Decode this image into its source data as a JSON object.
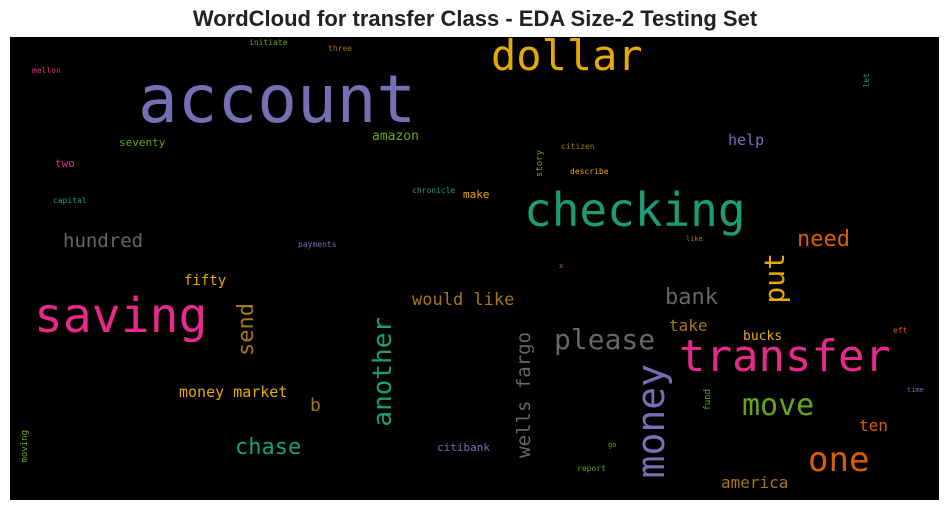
{
  "title": "WordCloud for transfer Class - EDA Size-2 Testing Set",
  "palette": {
    "purple": "#7570b3",
    "gold": "#e6ab02",
    "teal": "#1b9e77",
    "pink": "#e7298a",
    "orange": "#d95f02",
    "gray": "#666666",
    "green": "#66a61e",
    "brown": "#a6761d"
  },
  "words": [
    {
      "text": "account",
      "color": "purple"
    },
    {
      "text": "dollar",
      "color": "gold"
    },
    {
      "text": "checking",
      "color": "teal"
    },
    {
      "text": "saving",
      "color": "pink"
    },
    {
      "text": "transfer",
      "color": "pink"
    },
    {
      "text": "money",
      "color": "purple"
    },
    {
      "text": "move",
      "color": "green"
    },
    {
      "text": "one",
      "color": "orange"
    },
    {
      "text": "please",
      "color": "gray"
    },
    {
      "text": "put",
      "color": "gold"
    },
    {
      "text": "another",
      "color": "teal"
    },
    {
      "text": "send",
      "color": "brown"
    },
    {
      "text": "bank",
      "color": "gray"
    },
    {
      "text": "need",
      "color": "orange"
    },
    {
      "text": "hundred",
      "color": "gray"
    },
    {
      "text": "chase",
      "color": "teal"
    },
    {
      "text": "wells fargo",
      "color": "gray"
    },
    {
      "text": "would like",
      "color": "brown"
    },
    {
      "text": "money market",
      "color": "gold"
    },
    {
      "text": "take",
      "color": "brown"
    },
    {
      "text": "america",
      "color": "brown"
    },
    {
      "text": "help",
      "color": "purple"
    },
    {
      "text": "ten",
      "color": "orange"
    },
    {
      "text": "b",
      "color": "brown"
    },
    {
      "text": "fifty",
      "color": "gold"
    },
    {
      "text": "amazon",
      "color": "green"
    },
    {
      "text": "bucks",
      "color": "gold"
    },
    {
      "text": "seventy",
      "color": "green"
    },
    {
      "text": "two",
      "color": "pink"
    },
    {
      "text": "citibank",
      "color": "purple"
    },
    {
      "text": "make",
      "color": "gold"
    },
    {
      "text": "story",
      "color": "green"
    },
    {
      "text": "citizen",
      "color": "brown"
    },
    {
      "text": "describe",
      "color": "gold"
    },
    {
      "text": "chronicle",
      "color": "teal"
    },
    {
      "text": "payments",
      "color": "purple"
    },
    {
      "text": "capital",
      "color": "teal"
    },
    {
      "text": "mellon",
      "color": "pink"
    },
    {
      "text": "initiate",
      "color": "green"
    },
    {
      "text": "three",
      "color": "brown"
    },
    {
      "text": "let",
      "color": "teal"
    },
    {
      "text": "like",
      "color": "brown"
    },
    {
      "text": "x",
      "color": "brown"
    },
    {
      "text": "eft",
      "color": "orange"
    },
    {
      "text": "time",
      "color": "purple"
    },
    {
      "text": "fund",
      "color": "green"
    },
    {
      "text": "go",
      "color": "green"
    },
    {
      "text": "report",
      "color": "green"
    },
    {
      "text": "moving",
      "color": "green"
    }
  ]
}
